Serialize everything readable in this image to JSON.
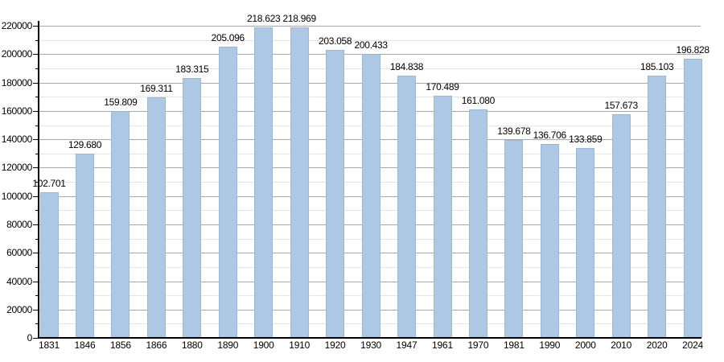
{
  "chart_data": {
    "type": "bar",
    "title": "",
    "xlabel": "",
    "ylabel": "",
    "categories": [
      "1831",
      "1846",
      "1856",
      "1866",
      "1880",
      "1890",
      "1900",
      "1910",
      "1920",
      "1930",
      "1947",
      "1961",
      "1970",
      "1981",
      "1990",
      "2000",
      "2010",
      "2020",
      "2024"
    ],
    "values": [
      102701,
      129680,
      159809,
      169311,
      183315,
      205096,
      218623,
      218969,
      203058,
      200433,
      184838,
      170489,
      161080,
      139678,
      136706,
      133859,
      157673,
      185103,
      196828
    ],
    "value_labels": [
      "102.701",
      "129.680",
      "159.809",
      "169.311",
      "183.315",
      "205.096",
      "218.623",
      "218.969",
      "203.058",
      "200.433",
      "184.838",
      "170.489",
      "161.080",
      "139.678",
      "136.706",
      "133.859",
      "157.673",
      "185.103",
      "196.828"
    ],
    "ylim": [
      0,
      220000
    ],
    "y_major_step": 20000,
    "y_minor_step": 10000,
    "y_tick_labels": [
      "0",
      "20000",
      "40000",
      "60000",
      "80000",
      "100000",
      "120000",
      "140000",
      "160000",
      "180000",
      "200000",
      "220000"
    ],
    "grid": true,
    "legend": "none",
    "colors": {
      "bar_fill": "#ACC8E4",
      "bar_border": "#9FB6D2",
      "major_gridline": "#A8A8A8",
      "minor_gridline": "#E4E4E4",
      "axis": "#000000",
      "text": "#000000",
      "background": "#FFFFFF"
    }
  }
}
